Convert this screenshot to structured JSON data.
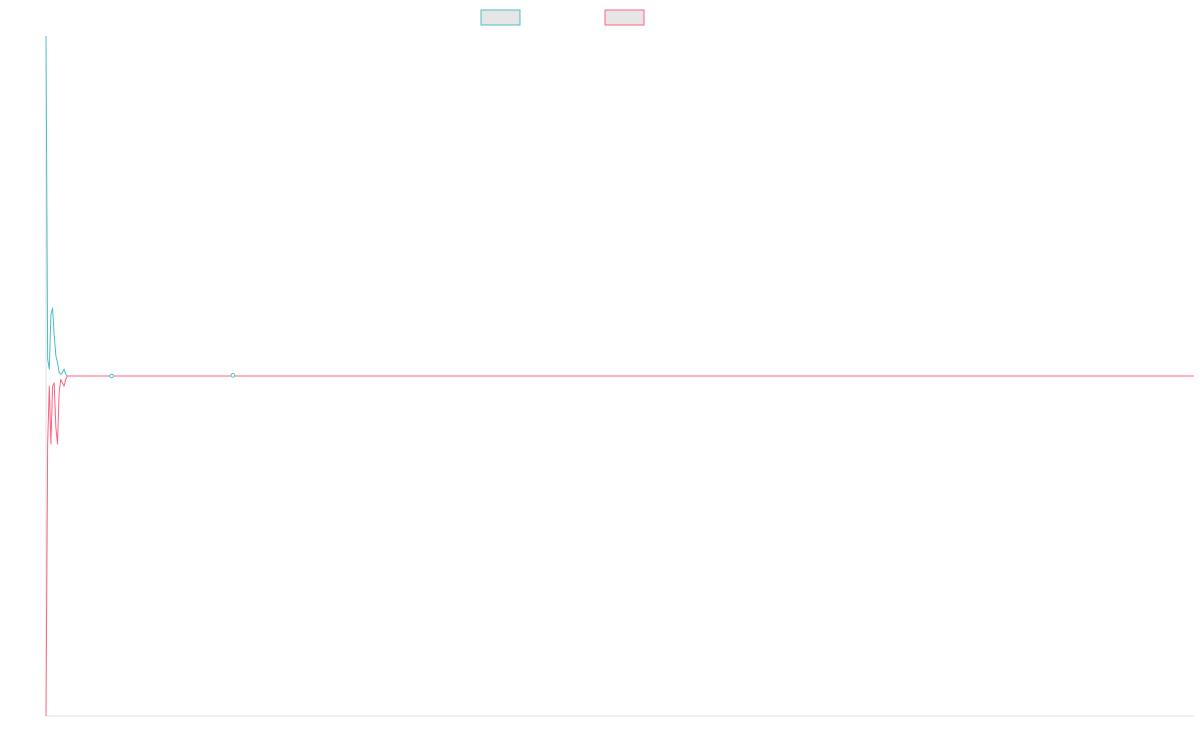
{
  "chart_data": {
    "type": "line",
    "title": "",
    "xlabel": "",
    "ylabel": "",
    "grid": false,
    "legend_position": "top-center",
    "legend": [
      {
        "name": "",
        "stroke": "#4bc0c0",
        "fill": "#e6e6e6"
      },
      {
        "name": "",
        "stroke": "#ff6384",
        "fill": "#e6e6e6"
      }
    ],
    "xlim": [
      0,
      700
    ],
    "ylim": [
      -100,
      100
    ],
    "x": [
      0,
      1,
      2,
      3,
      4,
      5,
      6,
      7,
      8,
      9,
      10,
      11,
      12,
      13,
      14,
      15,
      16,
      17,
      18,
      19,
      20,
      21,
      40,
      60,
      113,
      114,
      115,
      140,
      700
    ],
    "series": [
      {
        "name": "",
        "color": "#4bc0c0",
        "values": [
          100,
          5,
          2,
          18,
          20,
          12,
          6,
          4,
          1,
          0.5,
          1,
          2,
          0.5,
          0,
          0,
          0,
          0,
          0,
          0,
          0,
          0,
          0,
          0,
          0,
          0,
          0.2,
          0,
          0,
          0
        ]
      },
      {
        "name": "",
        "color": "#ff6384",
        "values": [
          -100,
          -20,
          -3,
          -20,
          -3,
          -2,
          -15,
          -20,
          -5,
          -1,
          -2,
          -3,
          -1,
          0,
          0,
          0,
          0,
          0,
          0,
          0,
          0,
          0,
          0,
          0,
          0,
          0,
          0,
          0,
          0
        ]
      }
    ]
  }
}
